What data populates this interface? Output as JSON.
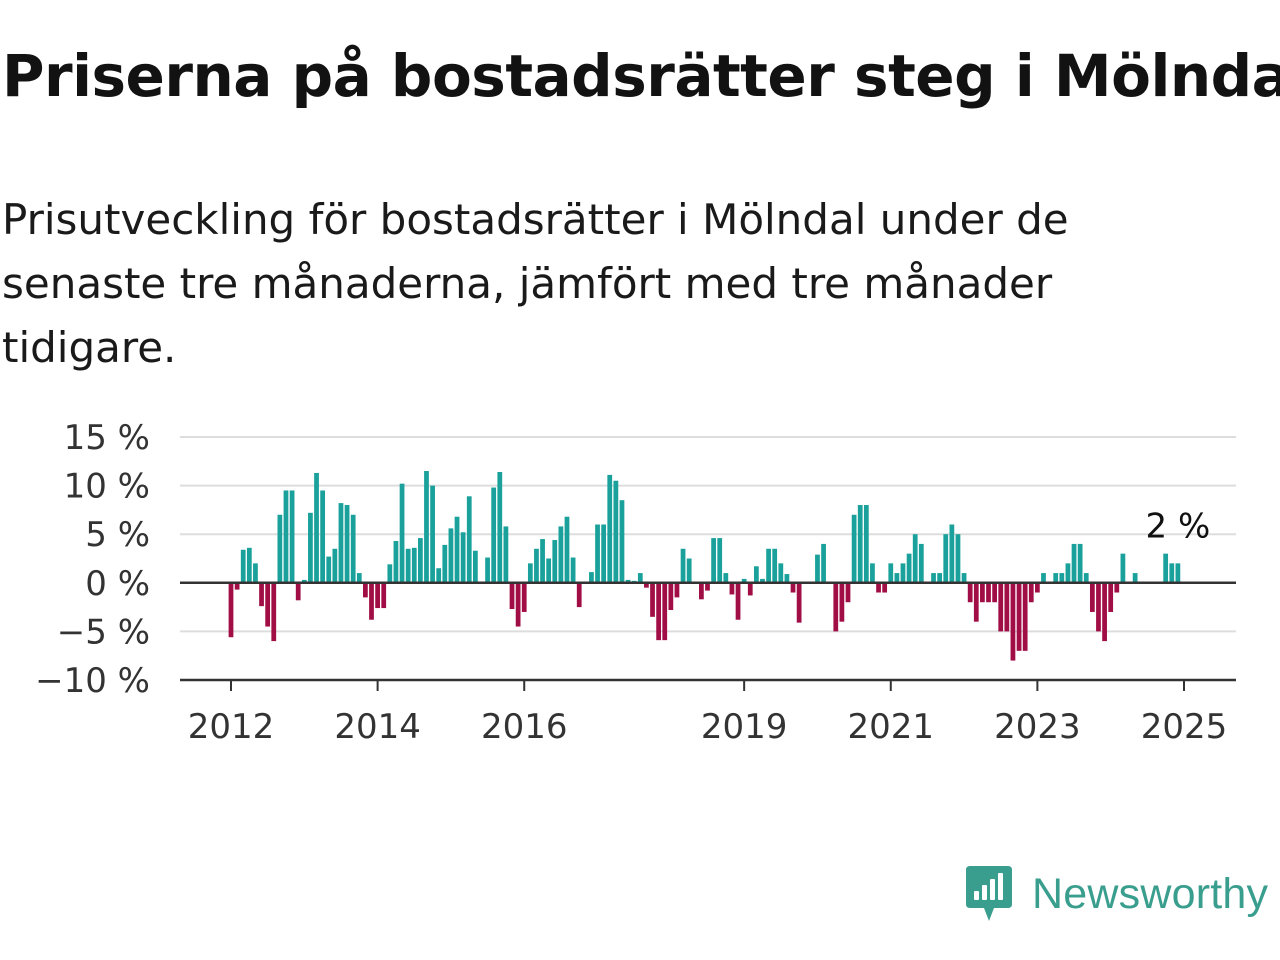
{
  "title": "Priserna på bostadsrätter steg i Mölndal",
  "subtitle": "Prisutveckling för bostadsrätter i Mölndal under de senaste tre månaderna, jämfört med tre månader tidigare.",
  "brand": {
    "name": "Newsworthy",
    "icon": "newsworthy-logo-icon",
    "color": "#3a9e8e"
  },
  "colors": {
    "positive": "#1aa19b",
    "negative": "#a10e45",
    "grid": "#dddddd",
    "axis": "#333333"
  },
  "chart_data": {
    "type": "bar",
    "xlabel": "",
    "ylabel": "",
    "ylim": [
      -10,
      15
    ],
    "yticks": [
      15,
      10,
      5,
      0,
      -5,
      -10
    ],
    "ytick_labels": [
      "15 %",
      "10 %",
      "5 %",
      "0 %",
      "−5 %",
      "−10 %"
    ],
    "xticks": [
      2012,
      2014,
      2016,
      2019,
      2021,
      2023,
      2025
    ],
    "x_start": "2012-01",
    "grid": true,
    "annotation": {
      "text": "2 %",
      "value": 2,
      "at": "last"
    },
    "values": [
      -5.6,
      -0.7,
      3.4,
      3.6,
      2.0,
      -2.4,
      -4.5,
      -6.0,
      7.0,
      9.5,
      9.5,
      -1.8,
      0.3,
      7.2,
      11.3,
      9.5,
      2.7,
      3.5,
      8.2,
      8.0,
      7.0,
      1.0,
      -1.5,
      -3.8,
      -2.6,
      -2.6,
      1.9,
      4.3,
      10.2,
      3.5,
      3.6,
      4.6,
      11.5,
      10.0,
      1.5,
      3.9,
      5.6,
      6.8,
      5.2,
      8.9,
      3.3,
      0.0,
      2.6,
      9.8,
      11.4,
      5.8,
      -2.7,
      -4.5,
      -3.0,
      2.0,
      3.5,
      4.5,
      2.5,
      4.4,
      5.8,
      6.8,
      2.6,
      -2.5,
      0.0,
      1.1,
      6.0,
      6.0,
      11.1,
      10.5,
      8.5,
      0.3,
      0.2,
      1.0,
      -0.5,
      -3.5,
      -5.9,
      -5.9,
      -2.8,
      -1.5,
      3.5,
      2.5,
      0.0,
      -1.7,
      -0.8,
      4.6,
      4.6,
      1.0,
      -1.2,
      -3.8,
      0.4,
      -1.3,
      1.7,
      0.4,
      3.5,
      3.5,
      2.0,
      0.9,
      -1.0,
      -4.1,
      0.0,
      0.0,
      2.9,
      4.0,
      0.0,
      -5.0,
      -4.0,
      -2.0,
      7.0,
      8.0,
      8.0,
      2.0,
      -1.0,
      -1.0,
      2.0,
      1.0,
      2.0,
      3.0,
      5.0,
      4.0,
      0.0,
      1.0,
      1.0,
      5.0,
      6.0,
      5.0,
      1.0,
      -2.0,
      -4.0,
      -2.0,
      -2.0,
      -2.0,
      -5.0,
      -5.0,
      -8.0,
      -7.0,
      -7.0,
      -2.0,
      -1.0,
      1.0,
      0.0,
      1.0,
      1.0,
      2.0,
      4.0,
      4.0,
      1.0,
      -3.0,
      -5.0,
      -6.0,
      -3.0,
      -1.0,
      3.0,
      0.0,
      1.0,
      0.0,
      0.0,
      0.0,
      0.0,
      3.0,
      2.0,
      2.0
    ]
  }
}
